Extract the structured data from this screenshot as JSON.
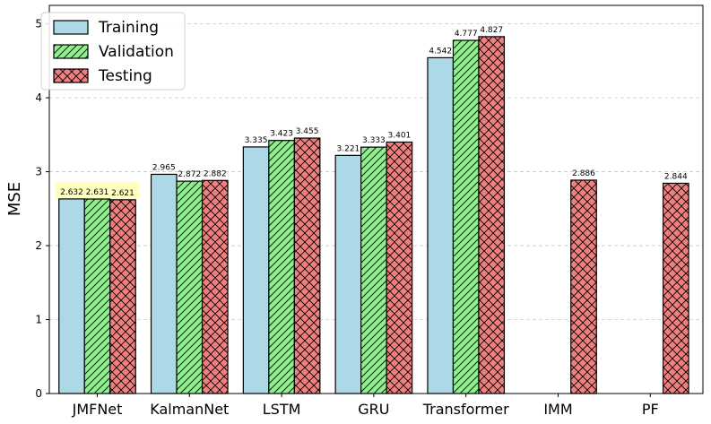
{
  "chart_data": {
    "type": "bar",
    "title": "",
    "xlabel": "",
    "ylabel": "MSE",
    "ylim": [
      0,
      5.25
    ],
    "yticks": [
      0,
      1,
      2,
      3,
      4,
      5
    ],
    "grid": "y-dashed",
    "legend_position": "top-left",
    "categories": [
      "JMFNet",
      "KalmanNet",
      "LSTM",
      "GRU",
      "Transformer",
      "IMM",
      "PF"
    ],
    "series": [
      {
        "name": "Training",
        "color": "#add8e6",
        "hatch": "none",
        "values": [
          2.632,
          2.965,
          3.335,
          3.221,
          4.542,
          null,
          null
        ],
        "labels": [
          "2.632",
          "2.965",
          "3.335",
          "3.221",
          "4.542",
          "",
          ""
        ]
      },
      {
        "name": "Validation",
        "color": "#90ee90",
        "hatch": "diagonal",
        "values": [
          2.631,
          2.872,
          3.423,
          3.333,
          4.777,
          null,
          null
        ],
        "labels": [
          "2.631",
          "2.872",
          "3.423",
          "3.333",
          "4.777",
          "",
          ""
        ]
      },
      {
        "name": "Testing",
        "color": "#f08080",
        "hatch": "cross",
        "values": [
          2.621,
          2.882,
          3.455,
          3.401,
          4.827,
          2.886,
          2.844
        ],
        "labels": [
          "2.621",
          "2.882",
          "3.455",
          "3.401",
          "4.827",
          "2.886",
          "2.844"
        ]
      }
    ],
    "highlight_category": "JMFNet",
    "highlight_color": "#ffffc0"
  }
}
